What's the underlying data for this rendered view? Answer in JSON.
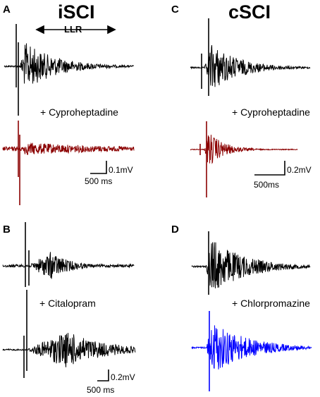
{
  "column_titles": {
    "left": "iSCI",
    "right": "cSCI"
  },
  "panel_labels": {
    "A": "A",
    "B": "B",
    "C": "C",
    "D": "D"
  },
  "llr_label": "LLR",
  "drugs": {
    "A": "+ Cyproheptadine",
    "B": "+ Citalopram",
    "C": "+ Cyproheptadine",
    "D": "+ Chlorpromazine"
  },
  "scale_bars": {
    "A": {
      "amplitude": "0.1mV",
      "time": "500 ms"
    },
    "B": {
      "amplitude": "0.2mV",
      "time": "500 ms"
    },
    "C": {
      "amplitude": "0.2mV",
      "time": "500ms"
    }
  },
  "colors": {
    "control_trace": "#000000",
    "cyproheptadine_trace": "#8b0000",
    "chlorpromazine_trace": "#0000ff"
  }
}
